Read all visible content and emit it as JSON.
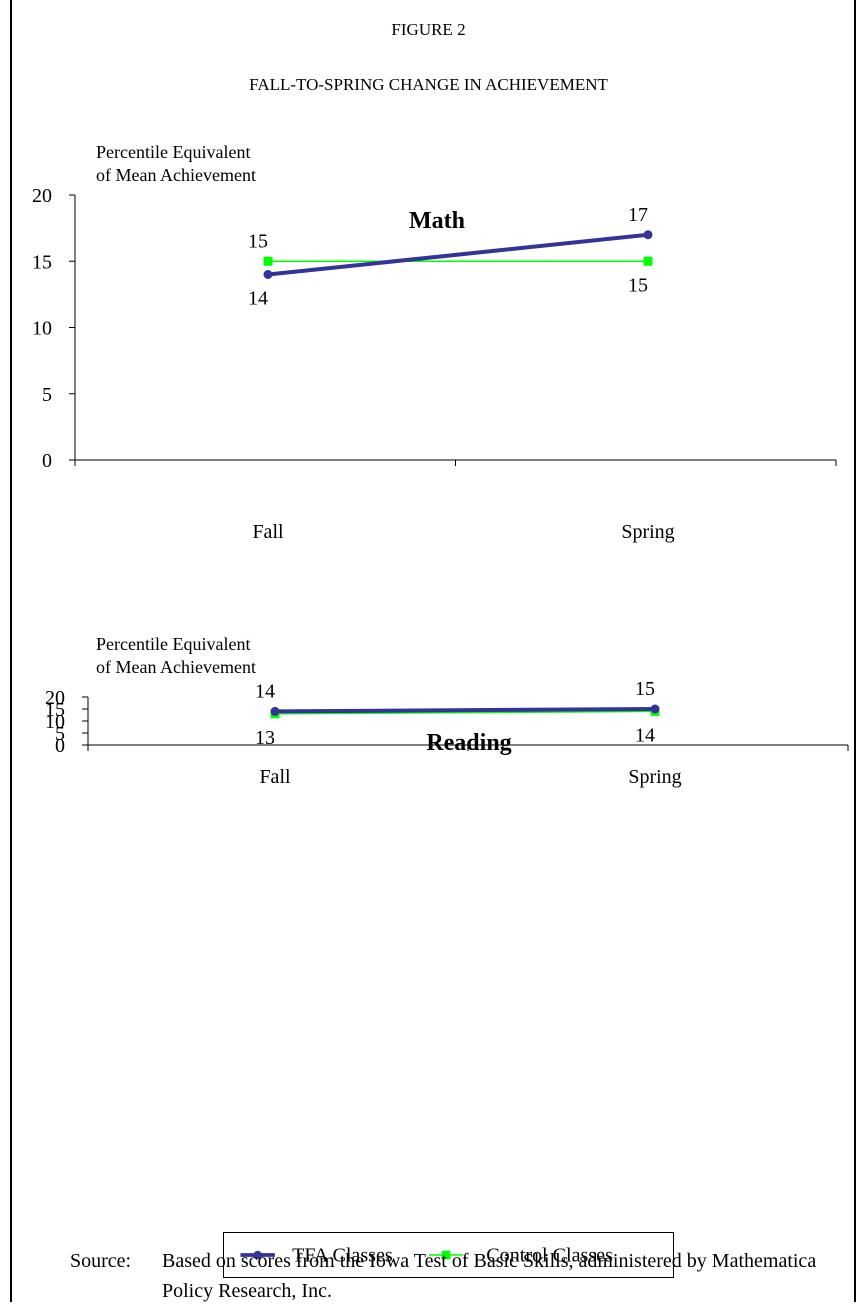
{
  "figure": {
    "label": "FIGURE 2",
    "title": "FALL-TO-SPRING CHANGE IN ACHIEVEMENT"
  },
  "chart_data": [
    {
      "type": "line",
      "title": "Math",
      "ylabel": "Percentile Equivalent of Mean Achievement",
      "ylabel_lines": [
        "Percentile Equivalent",
        "of Mean Achievement"
      ],
      "ylim": [
        0,
        20
      ],
      "yticks": [
        "0",
        "5",
        "10",
        "15",
        "20"
      ],
      "categories": [
        "Fall",
        "Spring"
      ],
      "series": [
        {
          "name": "TFA Classes",
          "values": [
            14,
            17
          ],
          "color": "#333399",
          "marker": "circle"
        },
        {
          "name": "Control Classes",
          "values": [
            15,
            15
          ],
          "color": "#00FF00",
          "marker": "square"
        }
      ],
      "grid": false
    },
    {
      "type": "line",
      "title": "Reading",
      "ylabel": "Percentile Equivalent of Mean Achievement",
      "ylabel_lines": [
        "Percentile Equivalent",
        "of Mean Achievement"
      ],
      "ylim": [
        0,
        20
      ],
      "yticks": [
        "0",
        "5",
        "10",
        "15",
        "20"
      ],
      "categories": [
        "Fall",
        "Spring"
      ],
      "series": [
        {
          "name": "TFA Classes",
          "values": [
            14,
            15
          ],
          "color": "#333399",
          "marker": "circle"
        },
        {
          "name": "Control Classes",
          "values": [
            13,
            14
          ],
          "color": "#00FF00",
          "marker": "square"
        }
      ],
      "grid": false
    }
  ],
  "legend": {
    "position": "bottom",
    "items": [
      {
        "label": "TFA Classes",
        "color": "#333399",
        "marker": "circle"
      },
      {
        "label": "Control Classes",
        "color": "#00FF00",
        "marker": "square"
      }
    ]
  },
  "source": {
    "label": "Source:",
    "text": "Based on scores from the Iowa Test of Basic Skills, administered by Mathematica Policy Research, Inc."
  }
}
